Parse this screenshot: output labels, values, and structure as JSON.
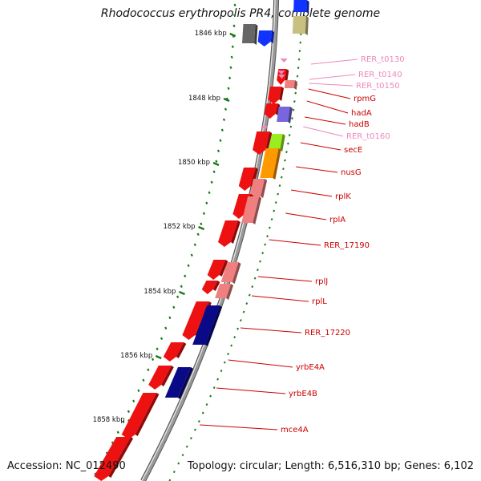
{
  "title": "Rhodococcus erythropolis PR4, complete genome",
  "accession": "Accession: NC_012490",
  "topology": "Topology: circular; Length: 6,516,310 bp; Genes: 6,102",
  "colors": {
    "backbone": "#999999",
    "backbone_shadow": "#555555",
    "tick": "#1a7a1a",
    "label_red": "#cc0000",
    "label_pink": "#ee88bb",
    "gene_red": "#ee1111",
    "gene_pink": "#f08080",
    "gene_navy": "#0a0a88",
    "gene_blue": "#1133ff",
    "gene_purple": "#7766dd",
    "gene_lime": "#99ee22",
    "gene_orange": "#ff9900",
    "gene_gray": "#666666",
    "gene_khaki": "#c8c080"
  },
  "kbp_ticks": [
    "1846 kbp",
    "1848 kbp",
    "1850 kbp",
    "1852 kbp",
    "1854 kbp",
    "1856 kbp",
    "1858 kbp"
  ],
  "gene_labels": [
    {
      "name": "RER_t0130",
      "type": "trna"
    },
    {
      "name": "RER_t0140",
      "type": "trna"
    },
    {
      "name": "RER_t0150",
      "type": "trna"
    },
    {
      "name": "rpmG",
      "type": "gene"
    },
    {
      "name": "hadA",
      "type": "gene"
    },
    {
      "name": "hadB",
      "type": "gene"
    },
    {
      "name": "RER_t0160",
      "type": "trna"
    },
    {
      "name": "secE",
      "type": "gene"
    },
    {
      "name": "nusG",
      "type": "gene"
    },
    {
      "name": "rplK",
      "type": "gene"
    },
    {
      "name": "rplA",
      "type": "gene"
    },
    {
      "name": "RER_17190",
      "type": "gene"
    },
    {
      "name": "rplJ",
      "type": "gene"
    },
    {
      "name": "rplL",
      "type": "gene"
    },
    {
      "name": "RER_17220",
      "type": "gene"
    },
    {
      "name": "yrbE4A",
      "type": "gene"
    },
    {
      "name": "yrbE4B",
      "type": "gene"
    },
    {
      "name": "mce4A",
      "type": "gene"
    }
  ]
}
